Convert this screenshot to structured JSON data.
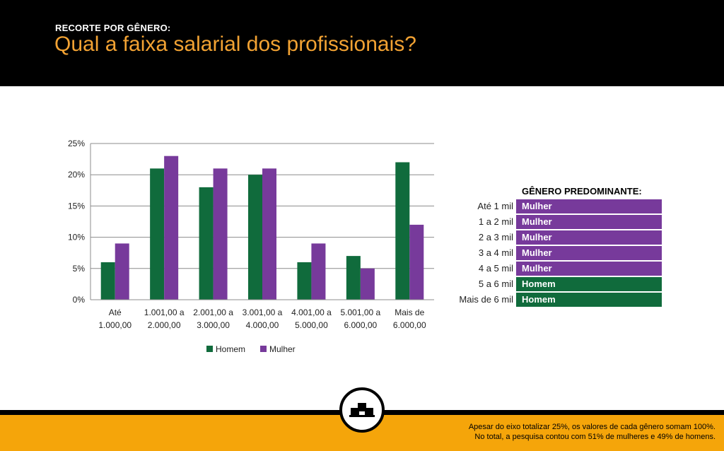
{
  "header": {
    "kicker": "RECORTE POR GÊNERO:",
    "title": "Qual a faixa salarial dos profissionais?"
  },
  "chart_data": {
    "type": "bar",
    "categories": [
      [
        "Até",
        "1.000,00"
      ],
      [
        "1.001,00 a",
        "2.000,00"
      ],
      [
        "2.001,00 a",
        "3.000,00"
      ],
      [
        "3.001,00 a",
        "4.000,00"
      ],
      [
        "4.001,00 a",
        "5.000,00"
      ],
      [
        "5.001,00 a",
        "6.000,00"
      ],
      [
        "Mais de",
        "6.000,00"
      ]
    ],
    "series": [
      {
        "name": "Homem",
        "color": "#106b3c",
        "values": [
          6,
          21,
          18,
          20,
          6,
          7,
          22
        ]
      },
      {
        "name": "Mulher",
        "color": "#773a9b",
        "values": [
          9,
          23,
          21,
          21,
          9,
          5,
          12
        ]
      }
    ],
    "yticks": [
      "0%",
      "5%",
      "10%",
      "15%",
      "20%",
      "25%"
    ],
    "ylim": [
      0,
      25
    ],
    "grid": true,
    "legend": "bottom"
  },
  "table": {
    "title": "GÊNERO PREDOMINANTE:",
    "rows": [
      {
        "label": "Até 1 mil",
        "value": "Mulher",
        "color": "#773a9b"
      },
      {
        "label": "1 a 2 mil",
        "value": "Mulher",
        "color": "#773a9b"
      },
      {
        "label": "2 a 3 mil",
        "value": "Mulher",
        "color": "#773a9b"
      },
      {
        "label": "3 a 4 mil",
        "value": "Mulher",
        "color": "#773a9b"
      },
      {
        "label": "4 a 5 mil",
        "value": "Mulher",
        "color": "#773a9b"
      },
      {
        "label": "5 a 6 mil",
        "value": "Homem",
        "color": "#106b3c"
      },
      {
        "label": "Mais de 6 mil",
        "value": "Homem",
        "color": "#106b3c"
      }
    ]
  },
  "footer": {
    "note_line1": "Apesar do eixo totalizar 25%, os valores de cada gênero somam 100%.",
    "note_line2": "No total, a pesquisa contou com 51% de mulheres e 49% de homens.",
    "badge_icon": "podium-icon"
  },
  "colors": {
    "header_bg": "#000000",
    "accent": "#f2a233",
    "footer_bg": "#f5a50a"
  }
}
